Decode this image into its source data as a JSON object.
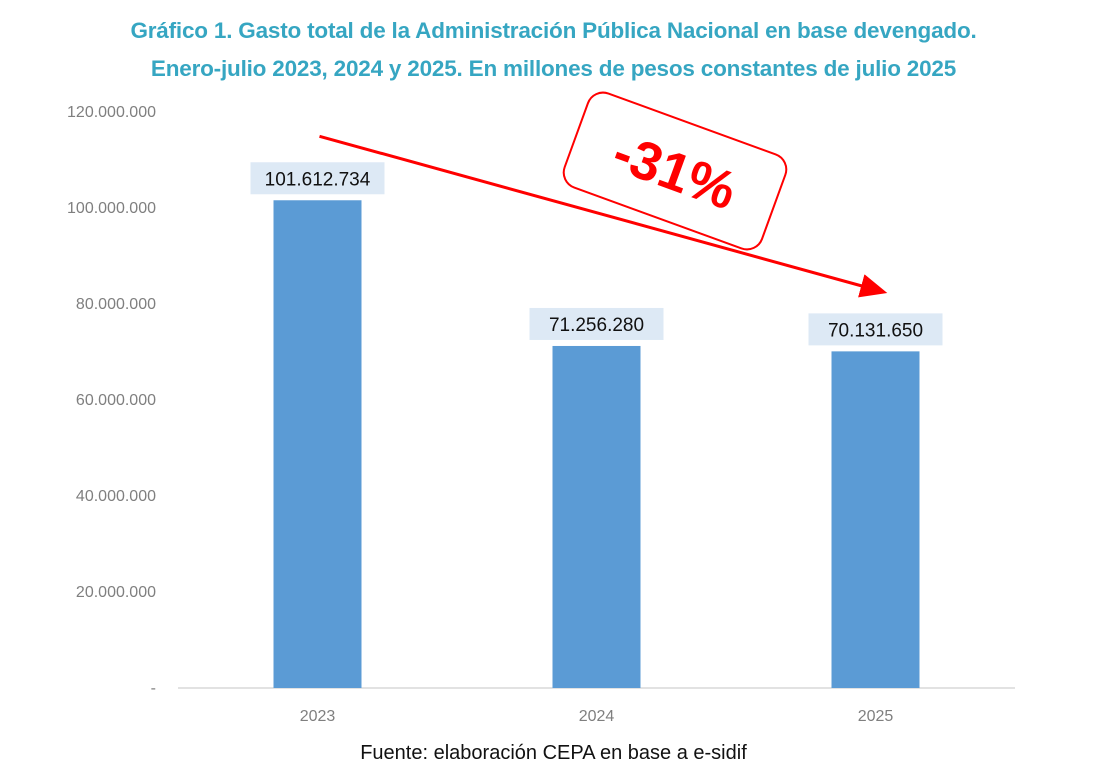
{
  "chart_data": {
    "type": "bar",
    "title": "Gráfico 1. Gasto total de la Administración Pública Nacional en base devengado.",
    "subtitle": "Enero-julio 2023, 2024 y 2025. En millones de pesos constantes de julio 2025",
    "title_lines": [
      "Gráfico 1. Gasto total de la Administración Pública Nacional en base devengado.",
      "Enero-julio 2023, 2024 y 2025. En millones de pesos constantes de julio 2025"
    ],
    "categories": [
      "2023",
      "2024",
      "2025"
    ],
    "values": [
      101612734,
      71256280,
      70131650
    ],
    "data_labels": [
      "101.612.734",
      "71.256.280",
      "70.131.650"
    ],
    "xlabel": "",
    "ylabel": "",
    "ylim": [
      0,
      120000000
    ],
    "yticks": [
      0,
      20000000,
      40000000,
      60000000,
      80000000,
      100000000,
      120000000
    ],
    "ytick_labels": [
      "-",
      "20.000.000",
      "40.000.000",
      "60.000.000",
      "80.000.000",
      "100.000.000",
      "120.000.000"
    ],
    "grid": false,
    "legend": "none",
    "annotation": {
      "text": "-31%",
      "type": "arrow",
      "from_category": "2023",
      "to_category": "2025",
      "color": "#ff0000"
    },
    "colors": {
      "bar": "#5b9bd5",
      "label_background": "#dde9f5",
      "title": "#36a6c2",
      "axis_text": "#7f7f7f",
      "axis_line": "#d9d9d9"
    }
  },
  "source": "Fuente: elaboración CEPA en base a e-sidif"
}
